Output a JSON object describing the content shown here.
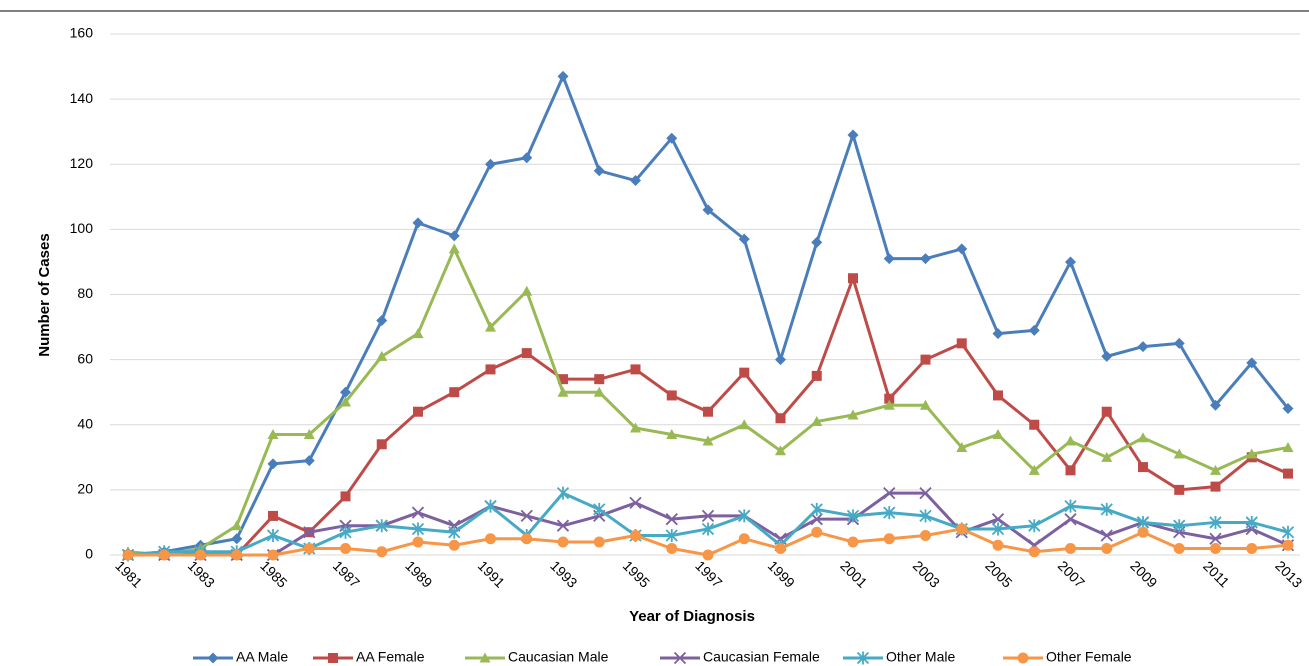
{
  "chart_data": {
    "type": "line",
    "x_label": "Year of Diagnosis",
    "y_label": "Number of Cases",
    "categories": [
      "1981",
      null,
      "1983",
      null,
      "1985",
      null,
      "1987",
      null,
      "1989",
      null,
      "1991",
      null,
      "1993",
      null,
      "1995",
      null,
      "1997",
      null,
      "1999",
      null,
      "2001",
      null,
      "2003",
      null,
      "2005",
      null,
      "2007",
      null,
      "2009",
      null,
      "2011",
      null,
      "2013"
    ],
    "series": [
      {
        "name": "AA Male",
        "color": "#4a7ebb",
        "marker": "diamond",
        "values": [
          0,
          1,
          3,
          5,
          28,
          29,
          50,
          72,
          102,
          98,
          120,
          122,
          147,
          118,
          115,
          128,
          106,
          97,
          60,
          96,
          129,
          91,
          91,
          94,
          68,
          69,
          90,
          61,
          64,
          65,
          46,
          59,
          45
        ]
      },
      {
        "name": "AA Female",
        "color": "#be4b48",
        "marker": "square",
        "values": [
          0,
          0,
          1,
          0,
          12,
          7,
          18,
          34,
          44,
          50,
          57,
          62,
          54,
          54,
          57,
          49,
          44,
          56,
          42,
          55,
          85,
          48,
          60,
          65,
          49,
          40,
          26,
          44,
          27,
          20,
          21,
          30,
          25
        ]
      },
      {
        "name": "Caucasian Male",
        "color": "#98b954",
        "marker": "triangle",
        "values": [
          1,
          0,
          2,
          9,
          37,
          37,
          47,
          61,
          68,
          94,
          70,
          81,
          50,
          50,
          39,
          37,
          35,
          40,
          32,
          41,
          43,
          46,
          46,
          33,
          37,
          26,
          35,
          30,
          36,
          31,
          26,
          31,
          33
        ]
      },
      {
        "name": "Caucasian Female",
        "color": "#7d60a0",
        "marker": "x",
        "values": [
          0,
          0,
          0,
          0,
          0,
          7,
          9,
          9,
          13,
          9,
          15,
          12,
          9,
          12,
          16,
          11,
          12,
          12,
          5,
          11,
          11,
          19,
          19,
          7,
          11,
          3,
          11,
          6,
          10,
          7,
          5,
          8,
          3
        ]
      },
      {
        "name": "Other Male",
        "color": "#46aac5",
        "marker": "star",
        "values": [
          0,
          1,
          1,
          1,
          6,
          2,
          7,
          9,
          8,
          7,
          15,
          6,
          19,
          14,
          6,
          6,
          8,
          12,
          3,
          14,
          12,
          13,
          12,
          8,
          8,
          9,
          15,
          14,
          10,
          9,
          10,
          10,
          7
        ]
      },
      {
        "name": "Other Female",
        "color": "#f79646",
        "marker": "circle",
        "values": [
          0,
          0,
          0,
          0,
          0,
          2,
          2,
          1,
          4,
          3,
          5,
          5,
          4,
          4,
          6,
          2,
          0,
          5,
          2,
          7,
          4,
          5,
          6,
          8,
          3,
          1,
          2,
          2,
          7,
          2,
          2,
          2,
          3
        ]
      }
    ],
    "ylim": [
      0,
      160
    ],
    "yticks": [
      0,
      20,
      40,
      60,
      80,
      100,
      120,
      140,
      160
    ],
    "grid": true,
    "legend": "bottom"
  }
}
